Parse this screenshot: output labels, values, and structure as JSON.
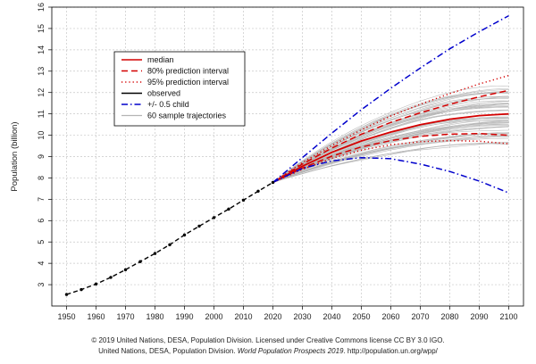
{
  "chart_data": {
    "type": "line",
    "title": "",
    "xlabel": "",
    "ylabel": "Population (billion)",
    "xlim": [
      1945,
      2105
    ],
    "ylim": [
      2,
      16
    ],
    "x_ticks": [
      1950,
      1960,
      1970,
      1980,
      1990,
      2000,
      2010,
      2020,
      2030,
      2040,
      2050,
      2060,
      2070,
      2080,
      2090,
      2100
    ],
    "y_ticks": [
      3,
      4,
      5,
      6,
      7,
      8,
      9,
      10,
      11,
      12,
      13,
      14,
      15,
      16
    ],
    "grid": true,
    "legend_position": "top-left",
    "legend": [
      {
        "label": "median",
        "color": "#d40000",
        "style": "solid"
      },
      {
        "label": "80% prediction interval",
        "color": "#d40000",
        "style": "dashed"
      },
      {
        "label": "95% prediction interval",
        "color": "#d40000",
        "style": "dotted"
      },
      {
        "label": "observed",
        "color": "#000000",
        "style": "solid"
      },
      {
        "label": "+/- 0.5 child",
        "color": "#0000cc",
        "style": "dashdot"
      },
      {
        "label": "60 sample trajectories",
        "color": "#b4b4b4",
        "style": "solid"
      }
    ],
    "observed": {
      "x": [
        1950,
        1955,
        1960,
        1965,
        1970,
        1975,
        1980,
        1985,
        1990,
        1995,
        2000,
        2005,
        2010,
        2015,
        2020
      ],
      "y": [
        2.54,
        2.77,
        3.03,
        3.34,
        3.7,
        4.08,
        4.46,
        4.87,
        5.33,
        5.74,
        6.14,
        6.54,
        6.96,
        7.38,
        7.79
      ]
    },
    "series": [
      {
        "name": "median",
        "x": [
          2020,
          2030,
          2040,
          2050,
          2060,
          2070,
          2080,
          2090,
          2100
        ],
        "y": [
          7.79,
          8.55,
          9.2,
          9.73,
          10.15,
          10.49,
          10.75,
          10.92,
          11.0
        ]
      },
      {
        "name": "80% prediction interval",
        "x": [
          2020,
          2030,
          2040,
          2050,
          2060,
          2070,
          2080,
          2090,
          2100
        ],
        "y": [
          7.79,
          8.65,
          9.4,
          10.05,
          10.6,
          11.05,
          11.45,
          11.8,
          12.1
        ]
      },
      {
        "name": "80% prediction interval",
        "x": [
          2020,
          2030,
          2040,
          2050,
          2060,
          2070,
          2080,
          2090,
          2100
        ],
        "y": [
          7.79,
          8.46,
          9.02,
          9.45,
          9.75,
          9.95,
          10.05,
          10.08,
          10.0
        ]
      },
      {
        "name": "95% prediction interval",
        "x": [
          2020,
          2030,
          2040,
          2050,
          2060,
          2070,
          2080,
          2090,
          2100
        ],
        "y": [
          7.79,
          8.72,
          9.52,
          10.25,
          10.9,
          11.45,
          11.95,
          12.4,
          12.8
        ]
      },
      {
        "name": "95% prediction interval",
        "x": [
          2020,
          2030,
          2040,
          2050,
          2060,
          2070,
          2080,
          2090,
          2100
        ],
        "y": [
          7.79,
          8.4,
          8.92,
          9.3,
          9.55,
          9.7,
          9.75,
          9.72,
          9.6
        ]
      },
      {
        "name": "+/- 0.5 child",
        "x": [
          2020,
          2030,
          2040,
          2050,
          2060,
          2070,
          2080,
          2090,
          2100
        ],
        "y": [
          7.79,
          8.95,
          10.1,
          11.2,
          12.2,
          13.15,
          14.05,
          14.85,
          15.6
        ]
      },
      {
        "name": "+/- 0.5 child",
        "x": [
          2020,
          2030,
          2040,
          2050,
          2060,
          2070,
          2080,
          2090,
          2100
        ],
        "y": [
          7.79,
          8.45,
          8.8,
          8.95,
          8.9,
          8.65,
          8.3,
          7.85,
          7.3
        ]
      }
    ],
    "sample_trajectories": {
      "count": 60,
      "x_range": [
        2020,
        2100
      ],
      "y_end_range": [
        9.6,
        12.4
      ]
    }
  },
  "credit": {
    "line1": "© 2019 United Nations, DESA, Population Division. Licensed under Creative Commons license CC BY 3.0 IGO.",
    "line2_prefix": "United Nations, DESA, Population Division. ",
    "line2_italic": "World Population Prospects 2019",
    "line2_suffix": ". http://population.un.org/wpp/"
  }
}
